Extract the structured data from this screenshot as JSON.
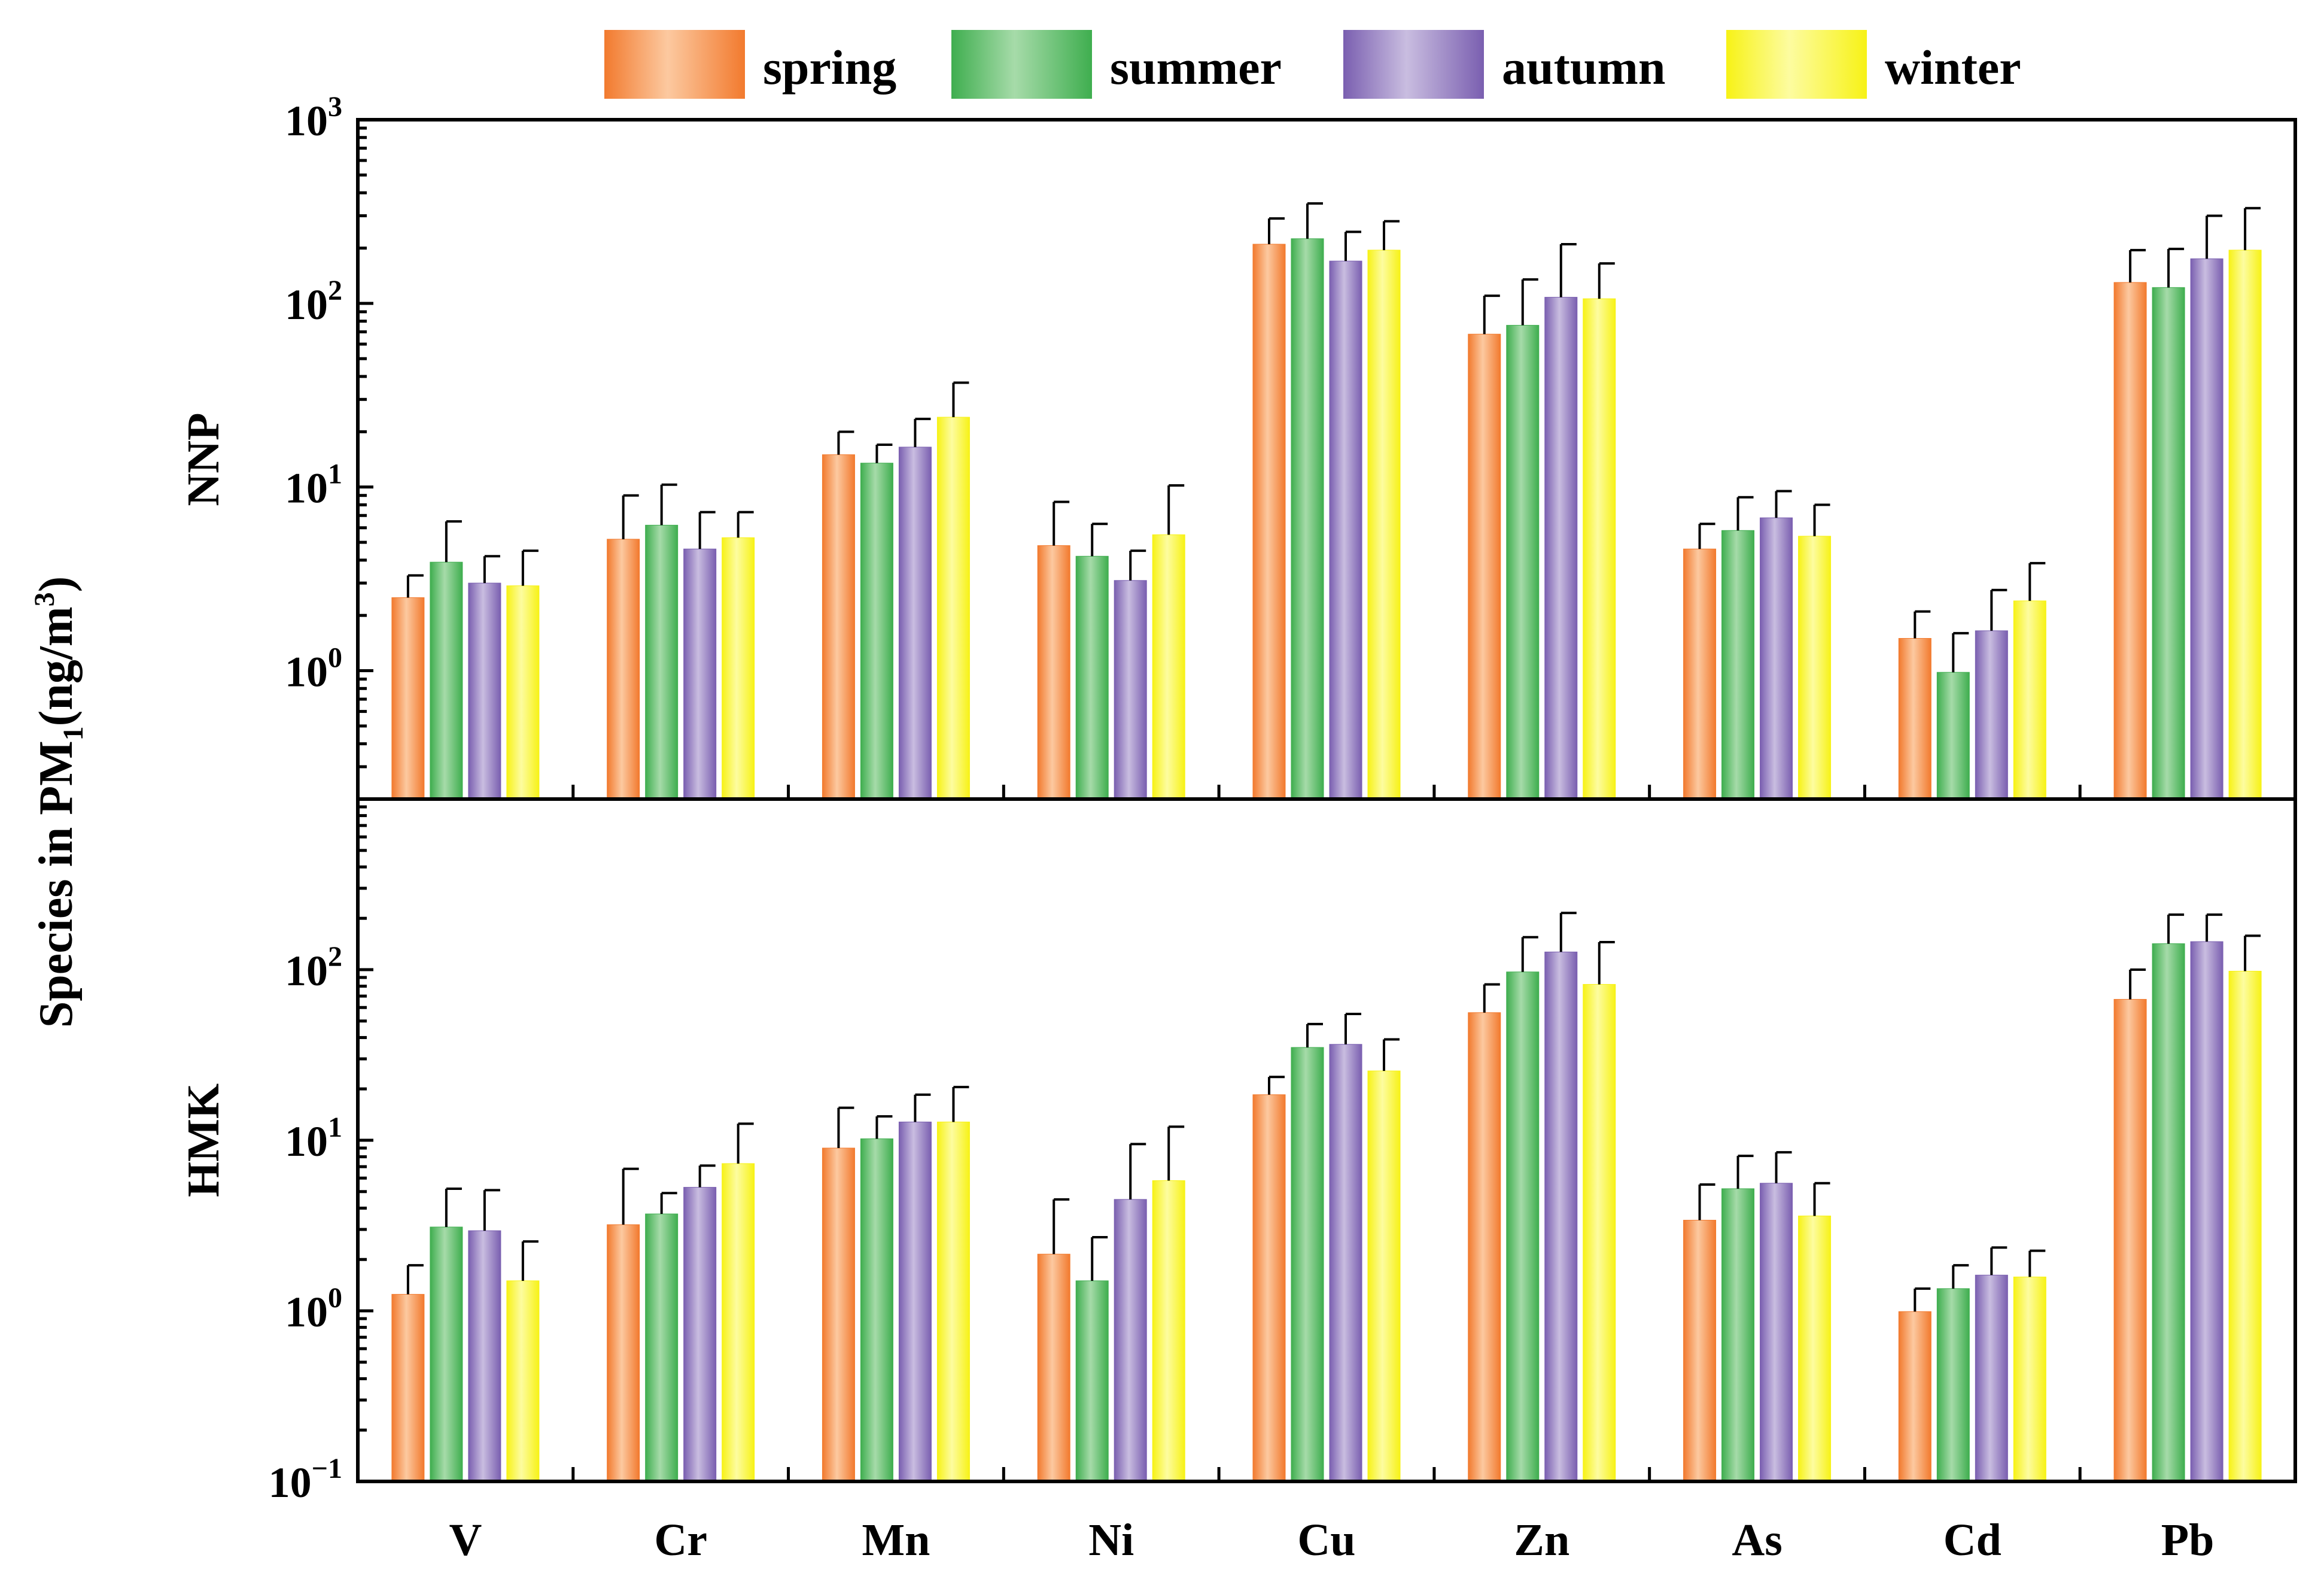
{
  "chart_data": {
    "type": "bar",
    "ylabel": "Species in PM",
    "ylabel_subscript": "1",
    "ylabel_unit_open": "(ng/m",
    "ylabel_unit_sup": "3",
    "ylabel_unit_close": ")",
    "yscale": "log",
    "categories": [
      "V",
      "Cr",
      "Mn",
      "Ni",
      "Cu",
      "Zn",
      "As",
      "Cd",
      "Pb"
    ],
    "legend": [
      {
        "name": "spring",
        "color": "#f27a2e",
        "light": "#fcc9a0"
      },
      {
        "name": "summer",
        "color": "#3fae4f",
        "light": "#a6dba9"
      },
      {
        "name": "autumn",
        "color": "#7a5fb0",
        "light": "#c9bde0"
      },
      {
        "name": "winter",
        "color": "#f7f216",
        "light": "#fdfca0"
      }
    ],
    "panels": [
      {
        "label": "NNP",
        "ylim": [
          0.2,
          1000
        ],
        "tick_labels": [
          {
            "value": 1,
            "base": "10",
            "exp": "0"
          },
          {
            "value": 10,
            "base": "10",
            "exp": "1"
          },
          {
            "value": 100,
            "base": "10",
            "exp": "2"
          },
          {
            "value": 1000,
            "base": "10",
            "exp": "3"
          }
        ],
        "series": [
          {
            "name": "spring",
            "values": [
              2.5,
              5.2,
              15,
              4.8,
              210,
              68,
              4.6,
              1.5,
              130
            ],
            "errors": [
              3.3,
              9.0,
              20,
              8.3,
              290,
              110,
              6.3,
              2.1,
              195
            ]
          },
          {
            "name": "summer",
            "values": [
              3.9,
              6.2,
              13.5,
              4.2,
              225,
              76,
              5.8,
              0.98,
              122
            ],
            "errors": [
              6.5,
              10.3,
              17,
              6.3,
              350,
              135,
              8.8,
              1.6,
              198
            ]
          },
          {
            "name": "autumn",
            "values": [
              3.0,
              4.6,
              16.5,
              3.1,
              170,
              108,
              6.8,
              1.65,
              175
            ],
            "errors": [
              4.2,
              7.3,
              23.5,
              4.5,
              245,
              210,
              9.5,
              2.75,
              300
            ]
          },
          {
            "name": "winter",
            "values": [
              2.9,
              5.3,
              24,
              5.5,
              195,
              106,
              5.4,
              2.4,
              195
            ],
            "errors": [
              4.5,
              7.3,
              37,
              10.2,
              280,
              165,
              8.0,
              3.85,
              330
            ]
          }
        ]
      },
      {
        "label": "HMK",
        "ylim": [
          0.1,
          1000
        ],
        "tick_labels": [
          {
            "value": 0.1,
            "base": "10",
            "exp": "−1"
          },
          {
            "value": 1,
            "base": "10",
            "exp": "0"
          },
          {
            "value": 10,
            "base": "10",
            "exp": "1"
          },
          {
            "value": 100,
            "base": "10",
            "exp": "2"
          }
        ],
        "series": [
          {
            "name": "spring",
            "values": [
              1.25,
              3.2,
              9.0,
              2.15,
              18.5,
              56,
              3.4,
              0.99,
              67
            ],
            "errors": [
              1.85,
              6.8,
              15.5,
              4.5,
              23.5,
              82,
              5.5,
              1.35,
              100
            ]
          },
          {
            "name": "summer",
            "values": [
              3.1,
              3.7,
              10.2,
              1.5,
              35,
              97,
              5.2,
              1.35,
              142
            ],
            "errors": [
              5.2,
              4.9,
              13.8,
              2.7,
              48,
              155,
              8.1,
              1.85,
              210
            ]
          },
          {
            "name": "autumn",
            "values": [
              2.95,
              5.3,
              12.8,
              4.5,
              36.5,
              127,
              5.6,
              1.62,
              146
            ],
            "errors": [
              5.1,
              7.1,
              18.5,
              9.5,
              55,
              215,
              8.5,
              2.35,
              210
            ]
          },
          {
            "name": "winter",
            "values": [
              1.5,
              7.3,
              12.8,
              5.8,
              25.5,
              82,
              3.6,
              1.58,
              98
            ],
            "errors": [
              2.55,
              12.5,
              20.5,
              12.0,
              39,
              145,
              5.6,
              2.25,
              158
            ]
          }
        ]
      }
    ]
  }
}
